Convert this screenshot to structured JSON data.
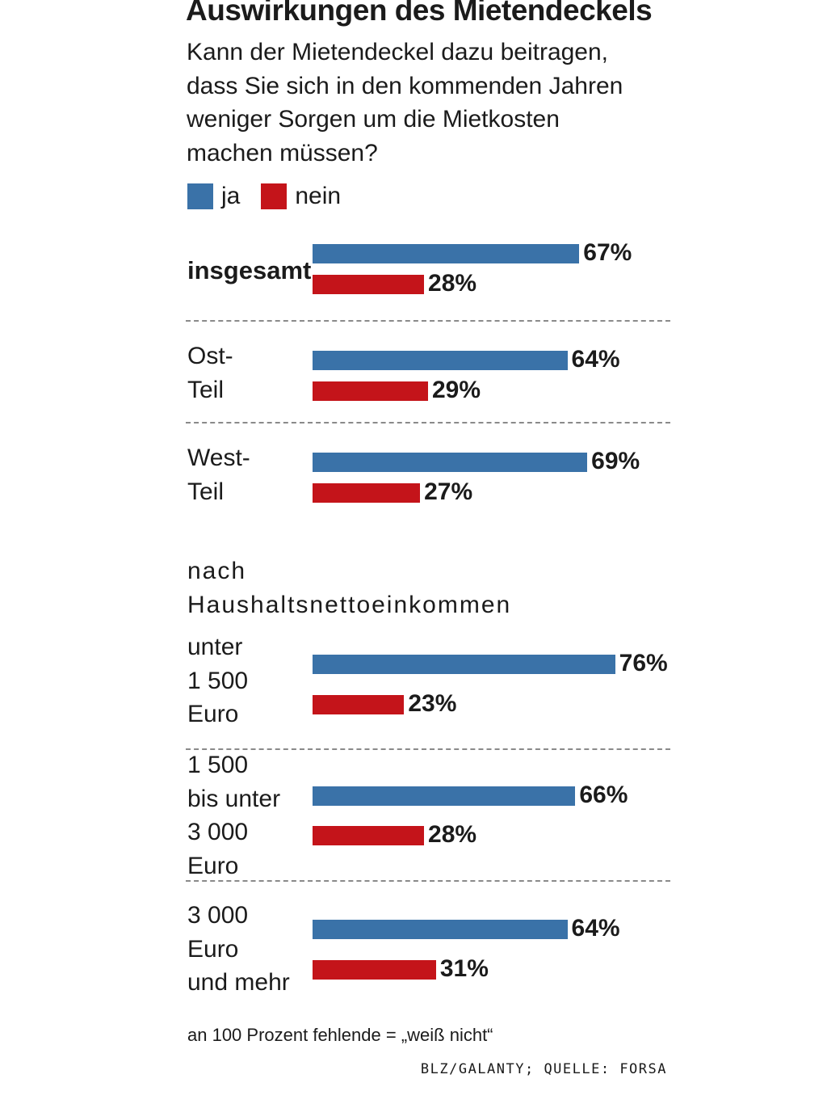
{
  "chart_data": {
    "type": "bar",
    "orientation": "horizontal",
    "title": "Auswirkungen des Mietendeckels",
    "subtitle_lines": [
      "Kann der Mietendeckel dazu beitragen,",
      "dass Sie sich in den kommenden Jahren",
      "weniger Sorgen um die Mietkosten",
      "machen müssen?"
    ],
    "section_label_lines": [
      "nach",
      "Haushaltsnettoeinkommen"
    ],
    "categories": [
      {
        "label_lines": [
          "insgesamt"
        ]
      },
      {
        "label_lines": [
          "Ost-",
          "Teil"
        ]
      },
      {
        "label_lines": [
          "West-",
          "Teil"
        ]
      },
      {
        "label_lines": [
          "unter",
          "1 500",
          "Euro"
        ]
      },
      {
        "label_lines": [
          "1 500",
          "bis unter",
          "3 000",
          "Euro"
        ]
      },
      {
        "label_lines": [
          "3 000",
          "Euro",
          "und mehr"
        ]
      }
    ],
    "series": [
      {
        "name": "ja",
        "color": "#3a72a8",
        "values": [
          67,
          64,
          69,
          76,
          66,
          64
        ],
        "labels": [
          "67%",
          "64%",
          "69%",
          "76%",
          "66%",
          "64%"
        ]
      },
      {
        "name": "nein",
        "color": "#c4141a",
        "values": [
          28,
          29,
          27,
          23,
          28,
          31
        ],
        "labels": [
          "28%",
          "29%",
          "27%",
          "23%",
          "28%",
          "31%"
        ]
      }
    ],
    "unit": "%",
    "xlim": [
      0,
      100
    ],
    "grid": false,
    "legend": "top-left",
    "footnote": "an 100 Prozent fehlende = „weiß nicht“",
    "source": "BLZ/GALANTY; QUELLE: FORSA"
  }
}
